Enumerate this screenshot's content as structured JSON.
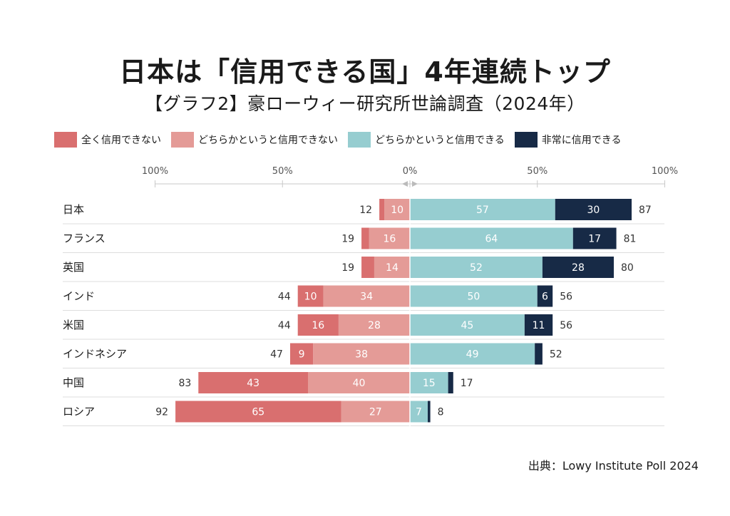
{
  "title": "日本は「信用できる国」4年連続トップ",
  "subtitle": "【グラフ2】豪ローウィー研究所世論調査（2024年）",
  "source": "出典：Lowy Institute Poll 2024",
  "colors": {
    "not_at_all": "#d96f6f",
    "not_very": "#e49b97",
    "somewhat": "#96cdd0",
    "very": "#172a46"
  },
  "chart_data": {
    "type": "bar",
    "orientation": "horizontal-diverging-stacked",
    "x_ticks": [
      "100%",
      "50%",
      "0%",
      "50%",
      "100%"
    ],
    "xlim": [
      -100,
      100
    ],
    "categories": [
      "日本",
      "フランス",
      "英国",
      "インド",
      "米国",
      "インドネシア",
      "中国",
      "ロシア"
    ],
    "series": [
      {
        "name": "全く信用できない",
        "side": "negative",
        "color_key": "not_at_all",
        "values": [
          2,
          3,
          5,
          10,
          16,
          9,
          43,
          65
        ],
        "labels": [
          "",
          "",
          "",
          "10",
          "16",
          "9",
          "43",
          "65"
        ]
      },
      {
        "name": "どちらかというと信用できない",
        "side": "negative",
        "color_key": "not_very",
        "values": [
          10,
          16,
          14,
          34,
          28,
          38,
          40,
          27
        ],
        "labels": [
          "10",
          "16",
          "14",
          "34",
          "28",
          "38",
          "40",
          "27"
        ]
      },
      {
        "name": "どちらかというと信用できる",
        "side": "positive",
        "color_key": "somewhat",
        "values": [
          57,
          64,
          52,
          50,
          45,
          49,
          15,
          7
        ],
        "labels": [
          "57",
          "64",
          "52",
          "50",
          "45",
          "49",
          "15",
          "7"
        ]
      },
      {
        "name": "非常に信用できる",
        "side": "positive",
        "color_key": "very",
        "values": [
          30,
          17,
          28,
          6,
          11,
          3,
          2,
          1
        ],
        "labels": [
          "30",
          "17",
          "28",
          "6",
          "11",
          "",
          "",
          ""
        ]
      }
    ],
    "negative_totals": [
      "12",
      "19",
      "19",
      "44",
      "44",
      "47",
      "83",
      "92"
    ],
    "positive_totals": [
      "87",
      "81",
      "80",
      "56",
      "56",
      "52",
      "17",
      "8"
    ],
    "legend_position": "top"
  }
}
